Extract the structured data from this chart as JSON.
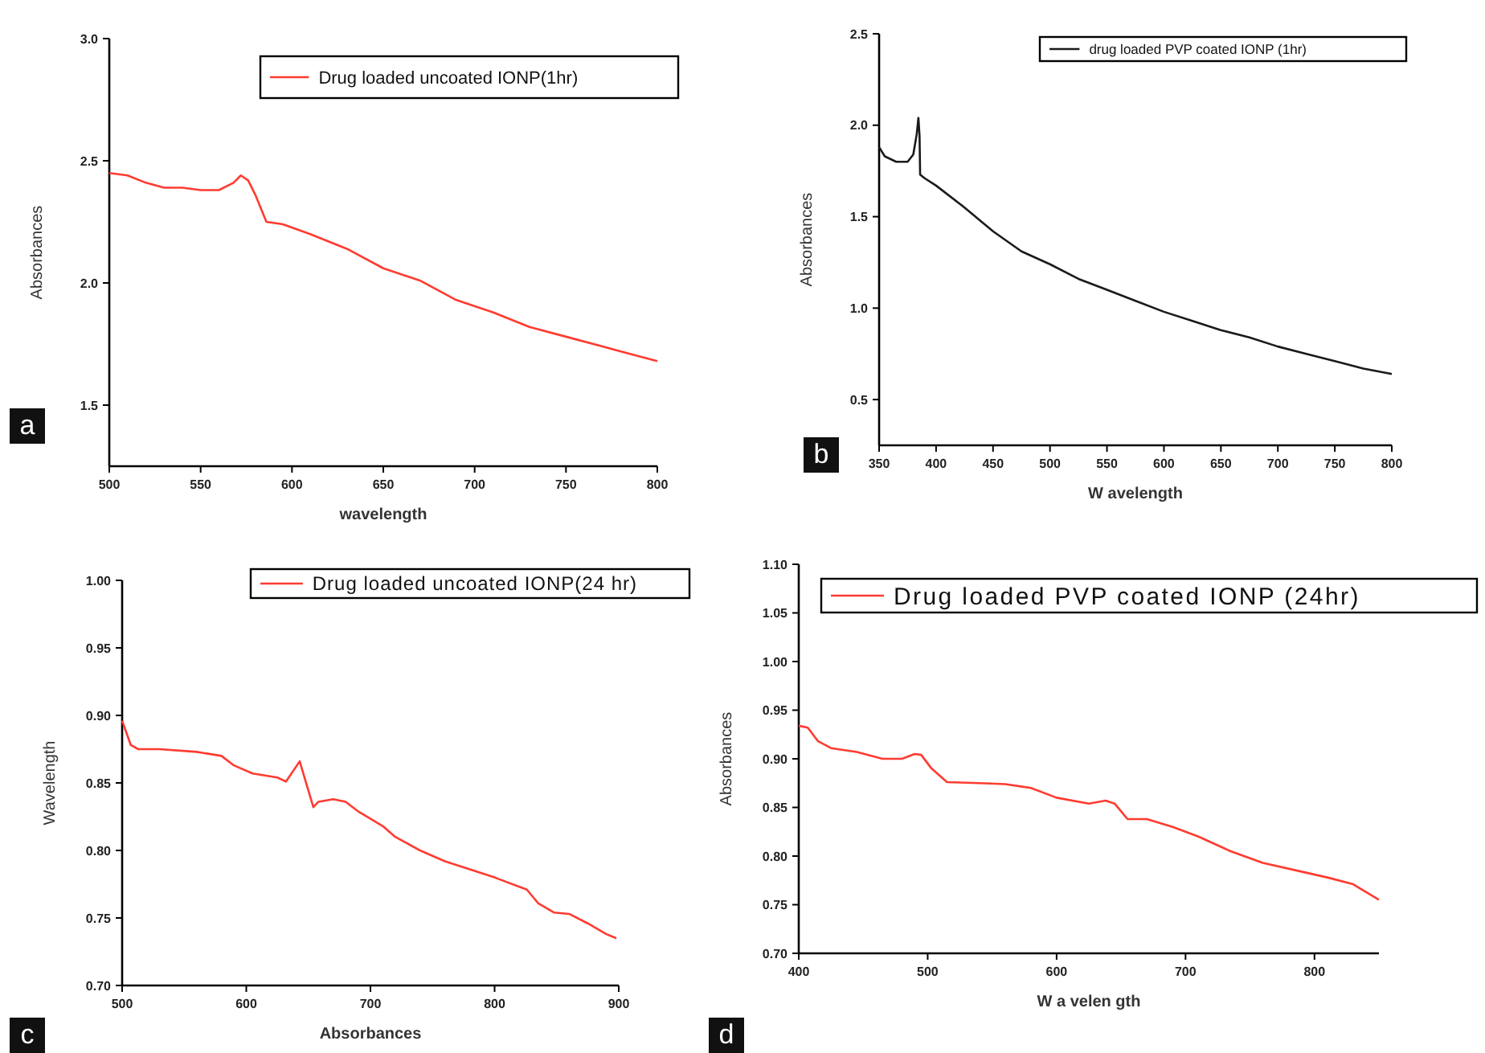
{
  "chart_data": [
    {
      "type": "line",
      "xlabel": "wavelength",
      "ylabel": "Absorbances",
      "annotations": [
        "a"
      ],
      "legend": "top right",
      "xlim": [
        500,
        800
      ],
      "xticks": [
        500,
        550,
        600,
        650,
        700,
        750,
        800
      ],
      "ylim": [
        1.25,
        3.0
      ],
      "yticks": [
        1.5,
        {
          "value": 2,
          "label": "2.0"
        },
        2.5,
        {
          "value": 3,
          "label": "3.0"
        }
      ],
      "series": [
        {
          "name": "Drug loaded uncoated IONP(1hr)",
          "color": "#ff3b30",
          "x": [
            500,
            510,
            520,
            530,
            540,
            550,
            560,
            568,
            572,
            576,
            580,
            586,
            595,
            610,
            630,
            650,
            670,
            690,
            710,
            730,
            750,
            770,
            790,
            800
          ],
          "values": [
            2.45,
            2.44,
            2.41,
            2.39,
            2.39,
            2.38,
            2.38,
            2.41,
            2.44,
            2.42,
            2.36,
            2.25,
            2.24,
            2.2,
            2.14,
            2.06,
            2.01,
            1.93,
            1.88,
            1.82,
            1.78,
            1.74,
            1.7,
            1.68
          ]
        }
      ]
    },
    {
      "type": "line",
      "xlabel": "W avelength",
      "ylabel": "Absorbances",
      "annotations": [
        "b"
      ],
      "legend": "top right",
      "xlim": [
        350,
        800
      ],
      "xticks": [
        350,
        400,
        450,
        500,
        550,
        600,
        650,
        700,
        750,
        800
      ],
      "ylim": [
        0.25,
        2.5
      ],
      "yticks": [
        0.5,
        {
          "value": 1,
          "label": "1.0"
        },
        1.5,
        {
          "value": 2,
          "label": "2.0"
        },
        2.5
      ],
      "series": [
        {
          "name": "drug loaded PVP coated IONP (1hr)",
          "color": "#1a1a1a",
          "x": [
            350,
            355,
            365,
            375,
            380,
            383,
            384.5,
            385.5,
            386,
            390,
            400,
            425,
            450,
            475,
            500,
            525,
            550,
            575,
            600,
            625,
            650,
            675,
            700,
            725,
            750,
            775,
            800
          ],
          "values": [
            1.88,
            1.83,
            1.8,
            1.8,
            1.84,
            1.95,
            2.04,
            1.94,
            1.73,
            1.71,
            1.67,
            1.55,
            1.42,
            1.31,
            1.24,
            1.16,
            1.1,
            1.04,
            0.98,
            0.93,
            0.88,
            0.84,
            0.79,
            0.75,
            0.71,
            0.67,
            0.64
          ]
        }
      ]
    },
    {
      "type": "line",
      "xlabel": "Absorbances",
      "ylabel": "Wavelength",
      "annotations": [
        "c"
      ],
      "legend": "top right",
      "xlim": [
        500,
        900
      ],
      "xticks": [
        500,
        600,
        700,
        800,
        900
      ],
      "ylim": [
        0.7,
        1.0
      ],
      "yticks": [
        {
          "value": 0.7,
          "label": "0.70"
        },
        0.75,
        {
          "value": 0.8,
          "label": "0.80"
        },
        0.85,
        {
          "value": 0.9,
          "label": "0.90"
        },
        0.95,
        {
          "value": 1,
          "label": "1.00"
        }
      ],
      "series": [
        {
          "name": "Drug loaded uncoated IONP(24 hr)",
          "color": "#ff3b30",
          "x": [
            500,
            507,
            513,
            530,
            560,
            580,
            590,
            605,
            625,
            632,
            643,
            654,
            658,
            670,
            680,
            690,
            710,
            720,
            740,
            760,
            780,
            800,
            826,
            835,
            848,
            860,
            875,
            890,
            898
          ],
          "values": [
            0.896,
            0.878,
            0.875,
            0.875,
            0.873,
            0.87,
            0.863,
            0.857,
            0.854,
            0.851,
            0.866,
            0.832,
            0.836,
            0.838,
            0.836,
            0.829,
            0.818,
            0.81,
            0.8,
            0.792,
            0.786,
            0.78,
            0.771,
            0.761,
            0.754,
            0.753,
            0.746,
            0.738,
            0.735
          ]
        }
      ]
    },
    {
      "type": "line",
      "xlabel": "W a velen gth",
      "ylabel": "Absorbances",
      "annotations": [
        "d"
      ],
      "legend": "top right",
      "xlim": [
        400,
        850
      ],
      "xticks": [
        400,
        500,
        600,
        700,
        800
      ],
      "ylim": [
        0.7,
        1.1
      ],
      "yticks": [
        {
          "value": 0.7,
          "label": "0.70"
        },
        0.75,
        {
          "value": 0.8,
          "label": "0.80"
        },
        0.85,
        {
          "value": 0.9,
          "label": "0.90"
        },
        0.95,
        {
          "value": 1,
          "label": "1.00"
        },
        1.05,
        {
          "value": 1.1,
          "label": "1.10"
        }
      ],
      "series": [
        {
          "name": "Drug loaded PVP coated IONP (24hr)",
          "color": "#ff3b30",
          "x": [
            400,
            407,
            415,
            425,
            445,
            465,
            480,
            490,
            495,
            503,
            515,
            540,
            560,
            580,
            600,
            625,
            638,
            645,
            655,
            670,
            690,
            710,
            735,
            760,
            790,
            810,
            830,
            850
          ],
          "values": [
            0.934,
            0.932,
            0.918,
            0.911,
            0.907,
            0.9,
            0.9,
            0.905,
            0.904,
            0.89,
            0.876,
            0.875,
            0.874,
            0.87,
            0.86,
            0.854,
            0.857,
            0.854,
            0.838,
            0.838,
            0.83,
            0.82,
            0.805,
            0.793,
            0.784,
            0.778,
            0.771,
            0.755
          ]
        }
      ]
    }
  ]
}
